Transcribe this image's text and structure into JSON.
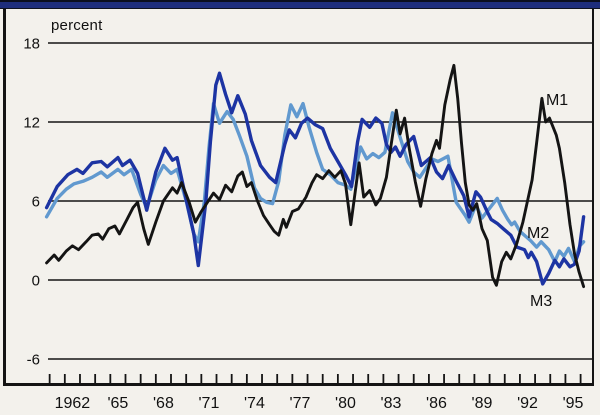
{
  "figure": {
    "unit_label": "percent"
  },
  "chart_data": {
    "type": "line",
    "title": "",
    "ylabel": "percent",
    "xlabel": "",
    "grid": "horizontal-only",
    "legend_position": "inline-labels",
    "ylim": [
      -6,
      18
    ],
    "xlim": [
      1960.2,
      1996.2
    ],
    "y_ticks": [
      18,
      12,
      6,
      0,
      -6
    ],
    "x_ticks": [
      {
        "label": "1962",
        "year": 1962
      },
      {
        "label": "'65",
        "year": 1965
      },
      {
        "label": "'68",
        "year": 1968
      },
      {
        "label": "'71",
        "year": 1971
      },
      {
        "label": "'74",
        "year": 1974
      },
      {
        "label": "'77",
        "year": 1977
      },
      {
        "label": "'80",
        "year": 1980
      },
      {
        "label": "'83",
        "year": 1983
      },
      {
        "label": "'86",
        "year": 1986
      },
      {
        "label": "'89",
        "year": 1989
      },
      {
        "label": "'92",
        "year": 1992
      },
      {
        "label": "'95",
        "year": 1995
      }
    ],
    "minor_ticks": {
      "start": 1960.5,
      "end": 1995.5,
      "step": 1
    },
    "annotations": [
      {
        "text": "M1",
        "year": 1993.95,
        "value": 13.7
      },
      {
        "text": "M2",
        "year": 1992.7,
        "value": 3.6
      },
      {
        "text": "M3",
        "year": 1992.9,
        "value": -1.55
      }
    ],
    "series": [
      {
        "name": "M2",
        "color": "#6199cf",
        "width": 3.4,
        "points": [
          [
            1960.3,
            4.8
          ],
          [
            1961.0,
            6.2
          ],
          [
            1961.6,
            6.9
          ],
          [
            1962.1,
            7.3
          ],
          [
            1962.7,
            7.5
          ],
          [
            1963.3,
            7.8
          ],
          [
            1963.9,
            8.2
          ],
          [
            1964.3,
            7.8
          ],
          [
            1965.0,
            8.4
          ],
          [
            1965.4,
            8.0
          ],
          [
            1965.9,
            8.4
          ],
          [
            1966.5,
            6.5
          ],
          [
            1966.9,
            5.5
          ],
          [
            1967.5,
            7.6
          ],
          [
            1968.0,
            8.7
          ],
          [
            1968.5,
            8.1
          ],
          [
            1968.9,
            8.4
          ],
          [
            1969.5,
            6.0
          ],
          [
            1970.0,
            3.5
          ],
          [
            1970.3,
            2.9
          ],
          [
            1970.7,
            6.0
          ],
          [
            1971.0,
            10.0
          ],
          [
            1971.3,
            13.4
          ],
          [
            1971.7,
            11.9
          ],
          [
            1972.2,
            12.8
          ],
          [
            1972.6,
            12.2
          ],
          [
            1973.0,
            11.0
          ],
          [
            1973.5,
            9.4
          ],
          [
            1974.0,
            7.0
          ],
          [
            1974.4,
            6.2
          ],
          [
            1974.8,
            5.9
          ],
          [
            1975.2,
            5.8
          ],
          [
            1975.6,
            7.5
          ],
          [
            1976.0,
            11.0
          ],
          [
            1976.4,
            13.3
          ],
          [
            1976.8,
            12.4
          ],
          [
            1977.2,
            13.4
          ],
          [
            1977.6,
            11.6
          ],
          [
            1978.1,
            9.7
          ],
          [
            1978.5,
            8.4
          ],
          [
            1979.0,
            8.0
          ],
          [
            1979.5,
            7.4
          ],
          [
            1980.0,
            7.2
          ],
          [
            1980.35,
            6.9
          ],
          [
            1981.0,
            10.1
          ],
          [
            1981.4,
            9.2
          ],
          [
            1981.8,
            9.6
          ],
          [
            1982.2,
            9.3
          ],
          [
            1982.6,
            9.7
          ],
          [
            1983.1,
            12.7
          ],
          [
            1983.5,
            11.2
          ],
          [
            1983.8,
            10.1
          ],
          [
            1984.1,
            9.0
          ],
          [
            1984.5,
            8.2
          ],
          [
            1984.9,
            7.8
          ],
          [
            1985.3,
            8.5
          ],
          [
            1985.7,
            9.2
          ],
          [
            1986.1,
            9.0
          ],
          [
            1986.75,
            9.4
          ],
          [
            1987.3,
            5.9
          ],
          [
            1987.9,
            4.9
          ],
          [
            1988.15,
            4.4
          ],
          [
            1988.6,
            5.7
          ],
          [
            1989.0,
            4.7
          ],
          [
            1989.4,
            5.3
          ],
          [
            1990.0,
            6.2
          ],
          [
            1990.35,
            5.3
          ],
          [
            1990.7,
            4.6
          ],
          [
            1990.95,
            4.2
          ],
          [
            1991.15,
            4.4
          ],
          [
            1991.5,
            3.7
          ],
          [
            1991.9,
            3.3
          ],
          [
            1992.2,
            3.0
          ],
          [
            1992.6,
            2.5
          ],
          [
            1992.9,
            2.9
          ],
          [
            1993.4,
            2.3
          ],
          [
            1993.8,
            1.4
          ],
          [
            1994.1,
            2.2
          ],
          [
            1994.4,
            1.8
          ],
          [
            1994.7,
            2.4
          ],
          [
            1995.1,
            1.4
          ],
          [
            1995.45,
            2.6
          ],
          [
            1995.7,
            2.9
          ]
        ]
      },
      {
        "name": "M3",
        "color": "#1d34a3",
        "width": 3.4,
        "points": [
          [
            1960.3,
            5.5
          ],
          [
            1961.0,
            7.1
          ],
          [
            1961.7,
            8.0
          ],
          [
            1962.3,
            8.4
          ],
          [
            1962.7,
            8.1
          ],
          [
            1963.3,
            8.9
          ],
          [
            1963.9,
            9.0
          ],
          [
            1964.3,
            8.6
          ],
          [
            1965.0,
            9.3
          ],
          [
            1965.3,
            8.7
          ],
          [
            1965.8,
            9.1
          ],
          [
            1966.3,
            8.1
          ],
          [
            1966.9,
            5.3
          ],
          [
            1967.5,
            8.2
          ],
          [
            1968.1,
            10.0
          ],
          [
            1968.6,
            9.1
          ],
          [
            1968.9,
            9.3
          ],
          [
            1969.5,
            6.1
          ],
          [
            1970.0,
            3.5
          ],
          [
            1970.3,
            1.1
          ],
          [
            1970.8,
            6.0
          ],
          [
            1971.1,
            10.5
          ],
          [
            1971.45,
            14.8
          ],
          [
            1971.7,
            15.7
          ],
          [
            1972.1,
            14.1
          ],
          [
            1972.5,
            12.7
          ],
          [
            1972.9,
            14.0
          ],
          [
            1973.4,
            12.6
          ],
          [
            1973.8,
            10.6
          ],
          [
            1974.4,
            8.7
          ],
          [
            1975.0,
            7.8
          ],
          [
            1975.4,
            7.4
          ],
          [
            1976.0,
            10.3
          ],
          [
            1976.3,
            11.4
          ],
          [
            1976.7,
            10.8
          ],
          [
            1977.1,
            11.9
          ],
          [
            1977.5,
            12.3
          ],
          [
            1978.0,
            11.8
          ],
          [
            1978.5,
            11.5
          ],
          [
            1979.0,
            10.0
          ],
          [
            1979.5,
            9.0
          ],
          [
            1980.0,
            8.0
          ],
          [
            1980.4,
            7.1
          ],
          [
            1980.8,
            10.5
          ],
          [
            1981.1,
            12.2
          ],
          [
            1981.6,
            11.6
          ],
          [
            1982.0,
            12.3
          ],
          [
            1982.4,
            11.9
          ],
          [
            1982.7,
            10.3
          ],
          [
            1983.0,
            9.7
          ],
          [
            1983.3,
            10.1
          ],
          [
            1983.6,
            9.4
          ],
          [
            1984.0,
            10.3
          ],
          [
            1984.5,
            10.9
          ],
          [
            1985.0,
            8.7
          ],
          [
            1985.6,
            9.3
          ],
          [
            1986.0,
            8.2
          ],
          [
            1986.4,
            7.7
          ],
          [
            1986.8,
            8.7
          ],
          [
            1987.3,
            7.5
          ],
          [
            1987.8,
            6.4
          ],
          [
            1988.15,
            4.8
          ],
          [
            1988.6,
            6.7
          ],
          [
            1988.9,
            6.3
          ],
          [
            1989.3,
            5.3
          ],
          [
            1989.6,
            4.6
          ],
          [
            1990.0,
            4.3
          ],
          [
            1990.4,
            3.9
          ],
          [
            1990.9,
            3.4
          ],
          [
            1991.3,
            2.5
          ],
          [
            1991.8,
            2.3
          ],
          [
            1992.05,
            1.7
          ],
          [
            1992.25,
            2.1
          ],
          [
            1992.6,
            1.4
          ],
          [
            1993.0,
            -0.3
          ],
          [
            1993.4,
            0.5
          ],
          [
            1993.8,
            1.5
          ],
          [
            1994.1,
            1.0
          ],
          [
            1994.4,
            1.6
          ],
          [
            1994.8,
            1.0
          ],
          [
            1995.1,
            1.2
          ],
          [
            1995.4,
            2.2
          ],
          [
            1995.7,
            4.8
          ]
        ]
      },
      {
        "name": "M1",
        "color": "#141414",
        "width": 2.9,
        "points": [
          [
            1960.3,
            1.3
          ],
          [
            1960.8,
            1.9
          ],
          [
            1961.1,
            1.5
          ],
          [
            1961.6,
            2.2
          ],
          [
            1962.0,
            2.6
          ],
          [
            1962.4,
            2.3
          ],
          [
            1962.9,
            2.9
          ],
          [
            1963.3,
            3.4
          ],
          [
            1963.7,
            3.5
          ],
          [
            1964.0,
            3.1
          ],
          [
            1964.4,
            3.9
          ],
          [
            1964.8,
            4.1
          ],
          [
            1965.1,
            3.5
          ],
          [
            1965.6,
            4.6
          ],
          [
            1966.0,
            5.5
          ],
          [
            1966.3,
            5.9
          ],
          [
            1966.7,
            3.9
          ],
          [
            1967.0,
            2.7
          ],
          [
            1967.5,
            4.4
          ],
          [
            1968.0,
            6.0
          ],
          [
            1968.6,
            7.0
          ],
          [
            1968.9,
            6.6
          ],
          [
            1969.2,
            7.4
          ],
          [
            1969.7,
            5.9
          ],
          [
            1970.1,
            4.4
          ],
          [
            1970.5,
            5.2
          ],
          [
            1970.9,
            5.9
          ],
          [
            1971.3,
            6.6
          ],
          [
            1971.7,
            6.1
          ],
          [
            1972.1,
            7.2
          ],
          [
            1972.5,
            6.7
          ],
          [
            1972.9,
            7.9
          ],
          [
            1973.2,
            8.2
          ],
          [
            1973.5,
            7.1
          ],
          [
            1973.8,
            7.4
          ],
          [
            1974.2,
            6.0
          ],
          [
            1974.6,
            4.9
          ],
          [
            1975.0,
            4.2
          ],
          [
            1975.3,
            3.7
          ],
          [
            1975.6,
            3.4
          ],
          [
            1975.9,
            4.6
          ],
          [
            1976.1,
            4.0
          ],
          [
            1976.5,
            5.2
          ],
          [
            1976.9,
            5.4
          ],
          [
            1977.4,
            6.3
          ],
          [
            1977.8,
            7.4
          ],
          [
            1978.1,
            8.0
          ],
          [
            1978.5,
            7.7
          ],
          [
            1978.9,
            8.3
          ],
          [
            1979.3,
            7.8
          ],
          [
            1979.7,
            8.3
          ],
          [
            1980.0,
            7.3
          ],
          [
            1980.35,
            4.2
          ],
          [
            1980.9,
            8.9
          ],
          [
            1981.2,
            6.3
          ],
          [
            1981.6,
            6.8
          ],
          [
            1982.0,
            5.7
          ],
          [
            1982.3,
            6.2
          ],
          [
            1982.7,
            7.8
          ],
          [
            1983.0,
            10.2
          ],
          [
            1983.35,
            12.9
          ],
          [
            1983.6,
            11.1
          ],
          [
            1983.9,
            12.3
          ],
          [
            1984.2,
            10.0
          ],
          [
            1984.6,
            7.5
          ],
          [
            1984.95,
            5.6
          ],
          [
            1985.3,
            7.7
          ],
          [
            1985.7,
            9.6
          ],
          [
            1986.0,
            10.6
          ],
          [
            1986.2,
            10.0
          ],
          [
            1986.55,
            13.3
          ],
          [
            1986.9,
            15.2
          ],
          [
            1987.15,
            16.3
          ],
          [
            1987.4,
            13.8
          ],
          [
            1987.65,
            10.4
          ],
          [
            1987.9,
            7.4
          ],
          [
            1988.15,
            5.7
          ],
          [
            1988.4,
            5.3
          ],
          [
            1988.65,
            5.8
          ],
          [
            1989.0,
            3.9
          ],
          [
            1989.35,
            3.0
          ],
          [
            1989.7,
            0.2
          ],
          [
            1989.95,
            -0.4
          ],
          [
            1990.3,
            1.4
          ],
          [
            1990.6,
            2.1
          ],
          [
            1990.9,
            1.6
          ],
          [
            1991.3,
            2.8
          ],
          [
            1991.7,
            4.4
          ],
          [
            1992.0,
            6.0
          ],
          [
            1992.3,
            7.6
          ],
          [
            1992.6,
            10.4
          ],
          [
            1992.95,
            13.8
          ],
          [
            1993.2,
            12.0
          ],
          [
            1993.45,
            12.3
          ],
          [
            1993.9,
            11.0
          ],
          [
            1994.1,
            10.0
          ],
          [
            1994.45,
            7.4
          ],
          [
            1994.8,
            4.2
          ],
          [
            1995.1,
            2.0
          ],
          [
            1995.4,
            0.6
          ],
          [
            1995.7,
            -0.5
          ]
        ]
      }
    ]
  },
  "colors": {
    "background": "#f3f1ec",
    "frame": "#141414",
    "top_band": "#1e2e7d",
    "m1": "#141414",
    "m2": "#6199cf",
    "m3": "#1d34a3"
  }
}
